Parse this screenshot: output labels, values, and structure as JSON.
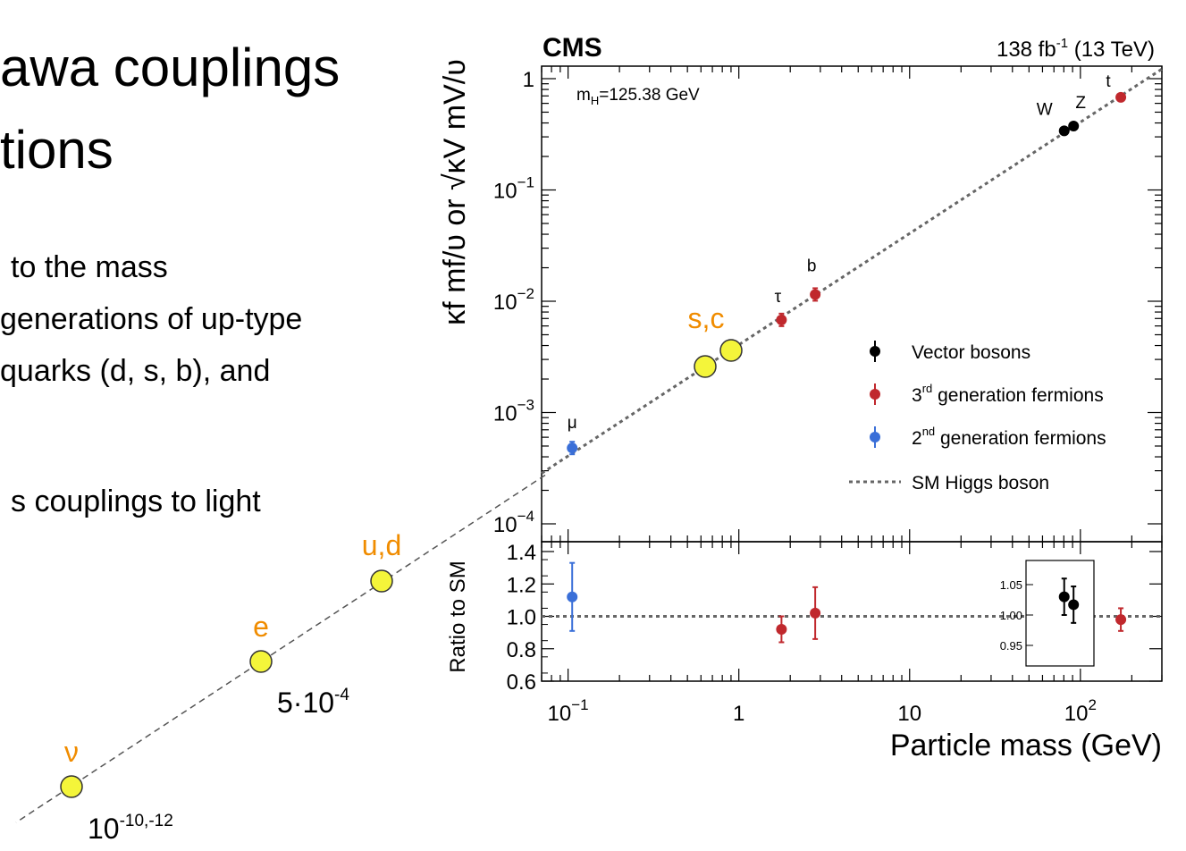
{
  "slide": {
    "title_lines": [
      "awa couplings",
      "tions"
    ],
    "body_lines": [
      "to the mass",
      "generations of up-type",
      "quarks (d, s, b), and",
      "s couplings to light"
    ]
  },
  "chart_data": {
    "type": "scatter",
    "experiment": "CMS",
    "lumi": {
      "text": "138 fb",
      "sup": "-1",
      "energy": "(13 TeV)"
    },
    "annotation": {
      "prefix": "m",
      "sub": "H",
      "value": "=125.38 GeV"
    },
    "xlabel": "Particle mass (GeV)",
    "ylabel": "κf mf/υ or √κV mV/υ",
    "ylabel_bottom": "Ratio to SM",
    "x_log": true,
    "y_log": true,
    "xlim": [
      0.07,
      300
    ],
    "ylim": [
      0.0001,
      1.4
    ],
    "ratio_ylim": [
      0.6,
      1.4
    ],
    "x_ticks": [
      {
        "value": 0.1,
        "base": "10",
        "exp": "−1"
      },
      {
        "value": 1,
        "base": "1",
        "exp": ""
      },
      {
        "value": 10,
        "base": "10",
        "exp": ""
      },
      {
        "value": 100,
        "base": "10",
        "exp": "2"
      }
    ],
    "y_ticks": [
      {
        "value": 1,
        "base": "1",
        "exp": ""
      },
      {
        "value": 0.1,
        "base": "10",
        "exp": "−1"
      },
      {
        "value": 0.01,
        "base": "10",
        "exp": "−2"
      },
      {
        "value": 0.001,
        "base": "10",
        "exp": "−3"
      },
      {
        "value": 0.0001,
        "base": "10",
        "exp": "−4"
      }
    ],
    "ratio_ticks": [
      "0.6",
      "0.8",
      "1.0",
      "1.2",
      "1.4"
    ],
    "inset_ticks": [
      "1.05",
      "1.00",
      "0.95"
    ],
    "series": [
      {
        "name": "Vector bosons",
        "color": "#000000",
        "points": [
          {
            "label": "W",
            "mass": 80.4,
            "y": 0.34,
            "ratio": 1.03,
            "ratio_err": 0.03
          },
          {
            "label": "Z",
            "mass": 91.2,
            "y": 0.375,
            "ratio": 1.017,
            "ratio_err": 0.03
          }
        ]
      },
      {
        "name": "3rd generation fermions",
        "color": "#c0282d",
        "points": [
          {
            "label": "τ",
            "mass": 1.777,
            "y": 0.0068,
            "ratio": 0.92,
            "ratio_err": 0.08
          },
          {
            "label": "b",
            "mass": 2.8,
            "y": 0.0115,
            "ratio": 1.02,
            "ratio_err": 0.16
          },
          {
            "label": "t",
            "mass": 172.5,
            "y": 0.68,
            "ratio": 0.98,
            "ratio_err": 0.07
          }
        ]
      },
      {
        "name": "2nd generation fermions",
        "color": "#3a6fd8",
        "points": [
          {
            "label": "μ",
            "mass": 0.1057,
            "y": 0.00048,
            "ratio": 1.12,
            "ratio_err": 0.21
          }
        ]
      }
    ],
    "legend": [
      {
        "text": "Vector bosons",
        "sup": "",
        "rest": ""
      },
      {
        "text": "3",
        "sup": "rd",
        "rest": " generation fermions"
      },
      {
        "text": "2",
        "sup": "nd",
        "rest": " generation fermions"
      },
      {
        "text": "SM Higgs boson",
        "sup": "",
        "rest": ""
      }
    ],
    "overlay": {
      "sc_label": "s,c",
      "ud_label": "u,d",
      "e_label": "e",
      "nu_label": "ν",
      "e_value": {
        "base": "5·10",
        "exp": "-4"
      },
      "nu_value": {
        "base": "10",
        "exp": "-10,-12"
      },
      "marker_color": "#f4f53a",
      "label_color": "#f08c00"
    }
  }
}
